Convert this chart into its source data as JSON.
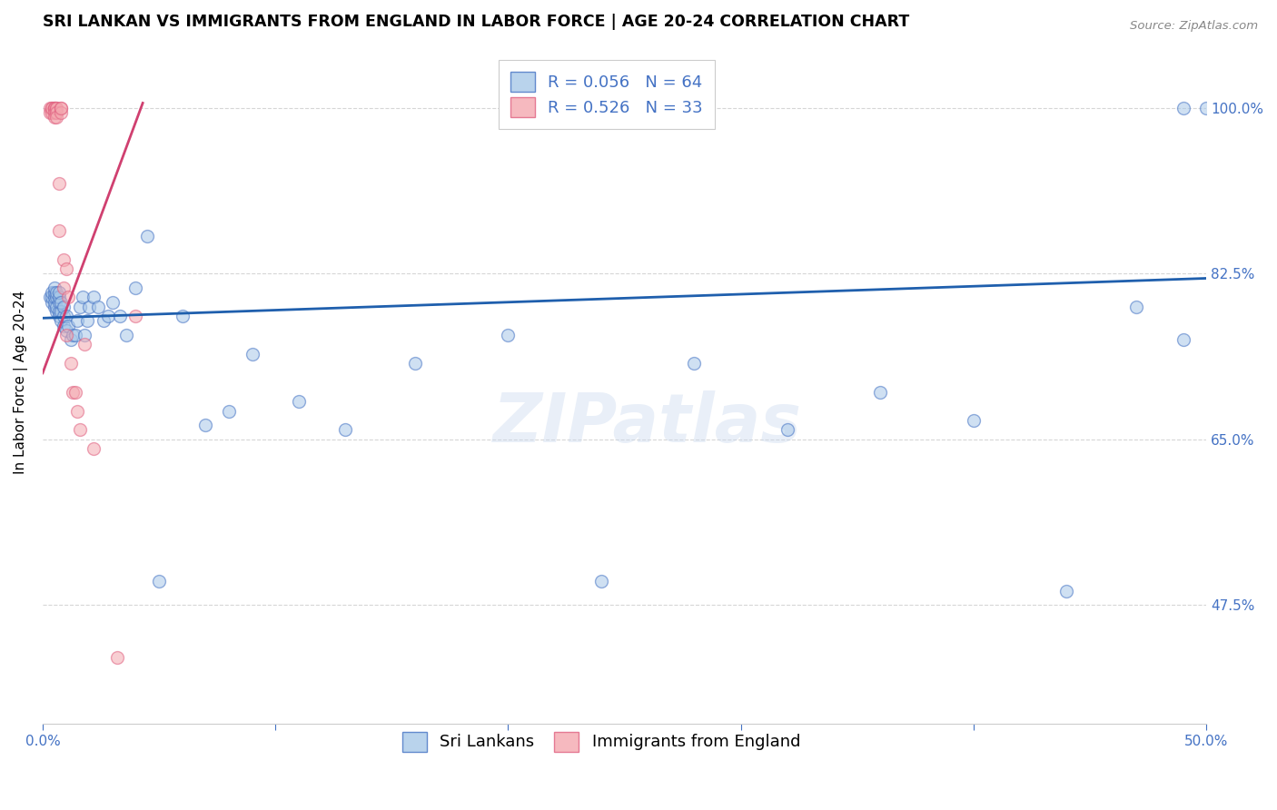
{
  "title": "SRI LANKAN VS IMMIGRANTS FROM ENGLAND IN LABOR FORCE | AGE 20-24 CORRELATION CHART",
  "source": "Source: ZipAtlas.com",
  "ylabel": "In Labor Force | Age 20-24",
  "ytick_labels": [
    "100.0%",
    "82.5%",
    "65.0%",
    "47.5%"
  ],
  "ytick_values": [
    1.0,
    0.825,
    0.65,
    0.475
  ],
  "xmin": 0.0,
  "xmax": 0.5,
  "ymin": 0.35,
  "ymax": 1.07,
  "blue_color": "#a8c8e8",
  "pink_color": "#f4a8b0",
  "blue_edge_color": "#4472c4",
  "pink_edge_color": "#e06080",
  "blue_line_color": "#1f5fad",
  "pink_line_color": "#d04070",
  "legend_blue_R": "R = 0.056",
  "legend_blue_N": "N = 64",
  "legend_pink_R": "R = 0.526",
  "legend_pink_N": "N = 33",
  "blue_scatter_x": [
    0.003,
    0.004,
    0.004,
    0.004,
    0.005,
    0.005,
    0.005,
    0.005,
    0.005,
    0.006,
    0.006,
    0.006,
    0.006,
    0.007,
    0.007,
    0.007,
    0.007,
    0.007,
    0.008,
    0.008,
    0.008,
    0.009,
    0.009,
    0.009,
    0.01,
    0.01,
    0.011,
    0.012,
    0.013,
    0.014,
    0.015,
    0.016,
    0.017,
    0.018,
    0.019,
    0.02,
    0.022,
    0.024,
    0.026,
    0.028,
    0.03,
    0.033,
    0.036,
    0.04,
    0.045,
    0.05,
    0.06,
    0.07,
    0.08,
    0.09,
    0.11,
    0.13,
    0.16,
    0.2,
    0.24,
    0.28,
    0.32,
    0.36,
    0.4,
    0.44,
    0.47,
    0.49,
    0.49,
    0.5
  ],
  "blue_scatter_y": [
    0.8,
    0.795,
    0.8,
    0.805,
    0.79,
    0.795,
    0.8,
    0.805,
    0.81,
    0.785,
    0.79,
    0.8,
    0.805,
    0.78,
    0.785,
    0.795,
    0.8,
    0.805,
    0.775,
    0.785,
    0.795,
    0.77,
    0.78,
    0.79,
    0.765,
    0.78,
    0.77,
    0.755,
    0.76,
    0.76,
    0.775,
    0.79,
    0.8,
    0.76,
    0.775,
    0.79,
    0.8,
    0.79,
    0.775,
    0.78,
    0.795,
    0.78,
    0.76,
    0.81,
    0.865,
    0.5,
    0.78,
    0.665,
    0.68,
    0.74,
    0.69,
    0.66,
    0.73,
    0.76,
    0.5,
    0.73,
    0.66,
    0.7,
    0.67,
    0.49,
    0.79,
    0.755,
    1.0,
    1.0
  ],
  "pink_scatter_x": [
    0.003,
    0.003,
    0.004,
    0.004,
    0.004,
    0.005,
    0.005,
    0.005,
    0.005,
    0.005,
    0.006,
    0.006,
    0.006,
    0.006,
    0.007,
    0.007,
    0.008,
    0.008,
    0.008,
    0.009,
    0.009,
    0.01,
    0.01,
    0.011,
    0.012,
    0.013,
    0.014,
    0.015,
    0.016,
    0.018,
    0.022,
    0.032,
    0.04
  ],
  "pink_scatter_y": [
    1.0,
    0.995,
    1.0,
    0.995,
    1.0,
    1.0,
    1.0,
    1.0,
    0.995,
    0.99,
    1.0,
    1.0,
    0.995,
    0.99,
    0.92,
    0.87,
    1.0,
    0.995,
    1.0,
    0.84,
    0.81,
    0.83,
    0.76,
    0.8,
    0.73,
    0.7,
    0.7,
    0.68,
    0.66,
    0.75,
    0.64,
    0.42,
    0.78
  ],
  "blue_trend_x": [
    0.0,
    0.5
  ],
  "blue_trend_y": [
    0.778,
    0.82
  ],
  "pink_trend_x": [
    0.0,
    0.043
  ],
  "pink_trend_y": [
    0.72,
    1.005
  ],
  "watermark": "ZIPatlas",
  "title_fontsize": 12.5,
  "axis_label_fontsize": 11,
  "tick_fontsize": 11,
  "legend_fontsize": 13,
  "scatter_size": 100,
  "scatter_alpha": 0.55,
  "scatter_linewidth": 1.0,
  "background_color": "#ffffff",
  "grid_color": "#cccccc",
  "grid_linestyle": "--",
  "grid_alpha": 0.8,
  "tick_color": "#4472c4"
}
